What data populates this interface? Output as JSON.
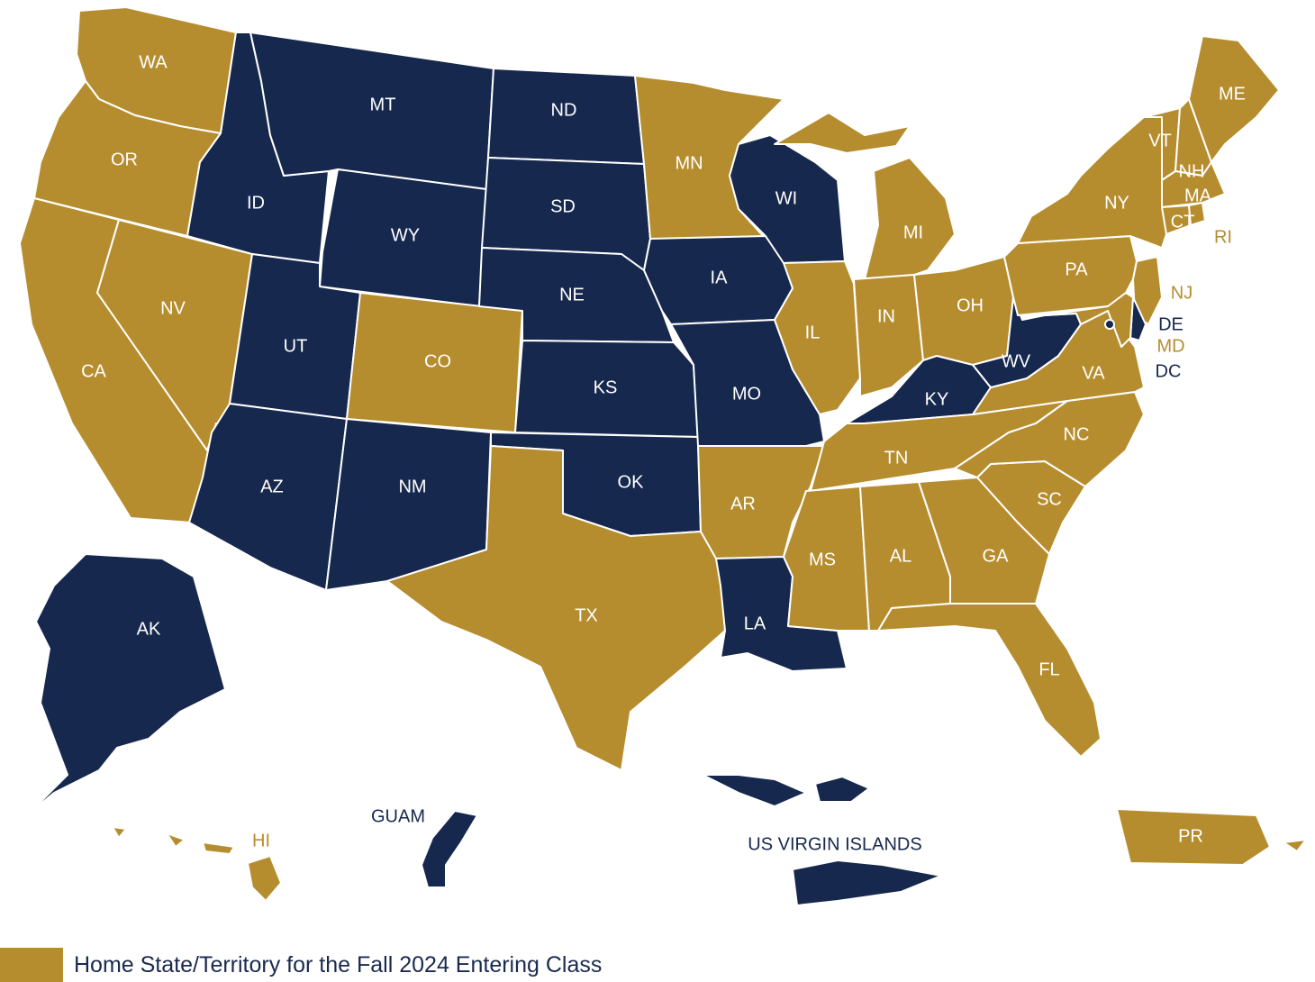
{
  "colors": {
    "home": "#b68d2e",
    "other": "#16284d",
    "background": "#ffffff",
    "label_on_fill": "#ffffff",
    "label_dark": "#16284d"
  },
  "legend": {
    "label": "Home State/Territory for the Fall 2024 Entering Class",
    "swatch_color": "#b68d2e"
  },
  "regions": [
    {
      "code": "WA",
      "home": true
    },
    {
      "code": "OR",
      "home": true
    },
    {
      "code": "CA",
      "home": true
    },
    {
      "code": "NV",
      "home": true
    },
    {
      "code": "ID",
      "home": false
    },
    {
      "code": "MT",
      "home": false
    },
    {
      "code": "WY",
      "home": false
    },
    {
      "code": "UT",
      "home": false
    },
    {
      "code": "AZ",
      "home": false
    },
    {
      "code": "CO",
      "home": true
    },
    {
      "code": "NM",
      "home": false
    },
    {
      "code": "ND",
      "home": false
    },
    {
      "code": "SD",
      "home": false
    },
    {
      "code": "NE",
      "home": false
    },
    {
      "code": "KS",
      "home": false
    },
    {
      "code": "OK",
      "home": false
    },
    {
      "code": "TX",
      "home": true
    },
    {
      "code": "MN",
      "home": true
    },
    {
      "code": "IA",
      "home": false
    },
    {
      "code": "MO",
      "home": false
    },
    {
      "code": "AR",
      "home": true
    },
    {
      "code": "LA",
      "home": false
    },
    {
      "code": "WI",
      "home": false
    },
    {
      "code": "IL",
      "home": true
    },
    {
      "code": "MI",
      "home": true
    },
    {
      "code": "IN",
      "home": true
    },
    {
      "code": "OH",
      "home": true
    },
    {
      "code": "KY",
      "home": false
    },
    {
      "code": "TN",
      "home": true
    },
    {
      "code": "MS",
      "home": true
    },
    {
      "code": "AL",
      "home": true
    },
    {
      "code": "GA",
      "home": true
    },
    {
      "code": "FL",
      "home": true
    },
    {
      "code": "SC",
      "home": true
    },
    {
      "code": "NC",
      "home": true
    },
    {
      "code": "VA",
      "home": true
    },
    {
      "code": "WV",
      "home": false
    },
    {
      "code": "PA",
      "home": true
    },
    {
      "code": "NY",
      "home": true
    },
    {
      "code": "VT",
      "home": true
    },
    {
      "code": "NH",
      "home": true
    },
    {
      "code": "ME",
      "home": true
    },
    {
      "code": "MA",
      "home": true
    },
    {
      "code": "CT",
      "home": true
    },
    {
      "code": "RI",
      "home": true
    },
    {
      "code": "NJ",
      "home": true
    },
    {
      "code": "DE",
      "home": false
    },
    {
      "code": "MD",
      "home": true
    },
    {
      "code": "DC",
      "home": false
    },
    {
      "code": "AK",
      "home": false
    },
    {
      "code": "HI",
      "home": true
    },
    {
      "code": "GUAM",
      "home": false
    },
    {
      "code": "US VIRGIN ISLANDS",
      "home": false
    },
    {
      "code": "PR",
      "home": true
    }
  ]
}
